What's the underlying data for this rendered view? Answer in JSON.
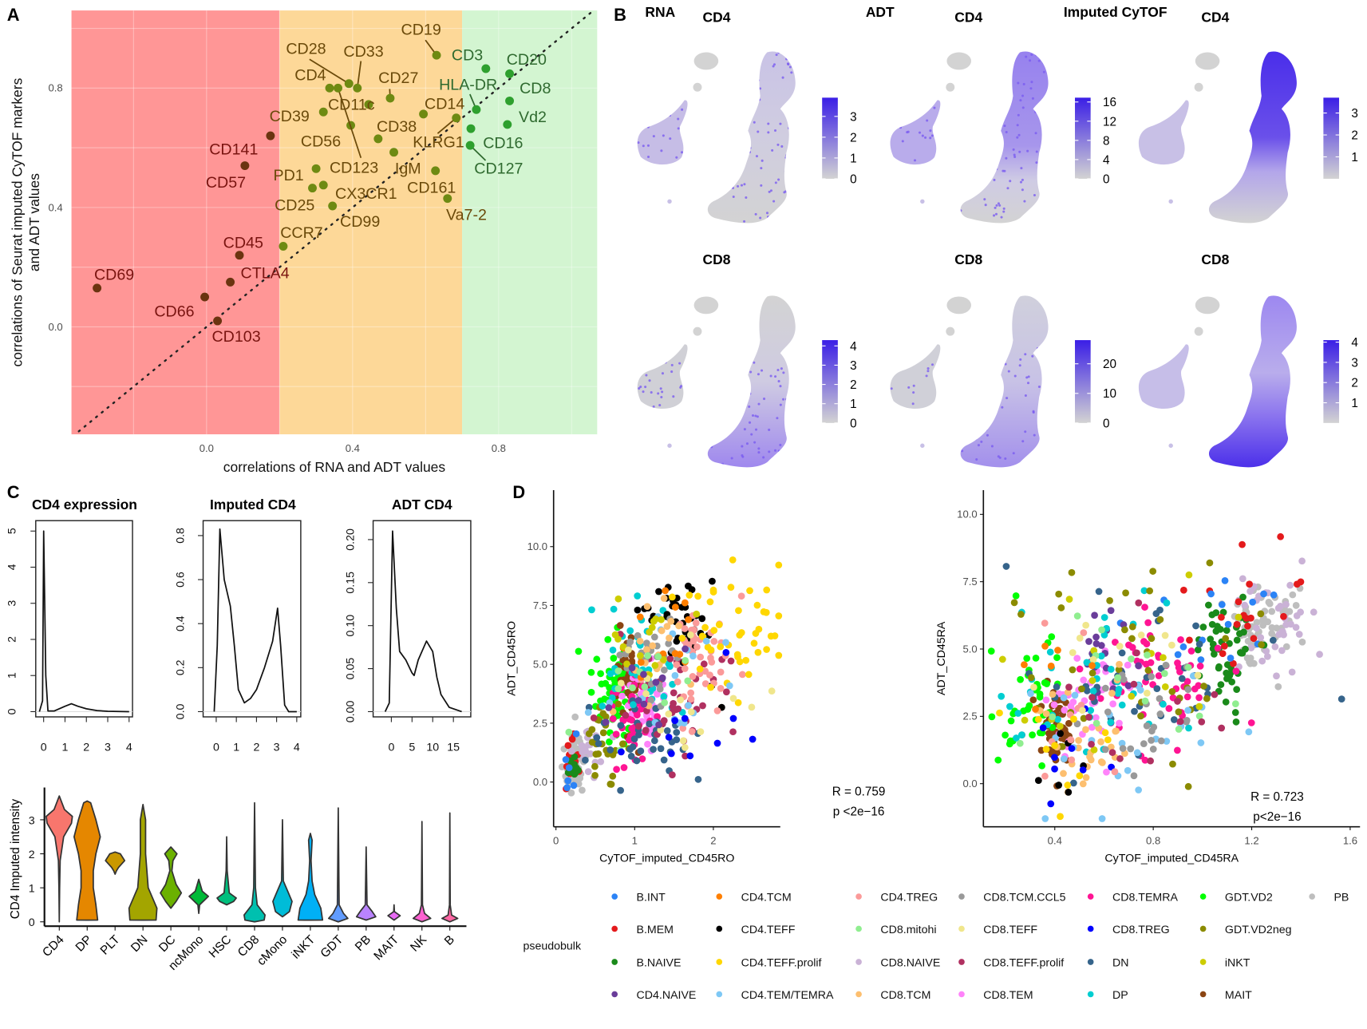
{
  "panel_letters": {
    "a": "A",
    "b": "B",
    "c": "C",
    "d": "D"
  },
  "chart_data": [
    {
      "type": "scatter",
      "xlabel": "correlations of RNA and ADT values",
      "ylabel_line1": "correlations of Seurat imputed CyTOF markers",
      "ylabel_line2": "and ADT values",
      "xlim": [
        -0.37,
        1.07
      ],
      "ylim": [
        -0.36,
        1.06
      ],
      "xticks": [
        "0.0",
        "0.4",
        "0.8"
      ],
      "yticks": [
        "0.0",
        "0.4",
        "0.8"
      ],
      "grid": true,
      "reference_line": "y = x (dotted)",
      "regions": [
        {
          "xmax": 0.2,
          "color": "#ff9696"
        },
        {
          "xmin": 0.2,
          "xmax": 0.7,
          "color": "#fdd898"
        },
        {
          "xmin": 0.7,
          "color": "#d3f5d1"
        }
      ],
      "points": [
        {
          "label": "CD69",
          "x": -0.3,
          "y": 0.13
        },
        {
          "label": "CD66",
          "x": -0.005,
          "y": 0.1
        },
        {
          "label": "CD103",
          "x": 0.03,
          "y": 0.02
        },
        {
          "label": "CTLA4",
          "x": 0.065,
          "y": 0.15
        },
        {
          "label": "CD45",
          "x": 0.09,
          "y": 0.24
        },
        {
          "label": "CD57",
          "x": 0.105,
          "y": 0.54
        },
        {
          "label": "CD141",
          "x": 0.175,
          "y": 0.64
        },
        {
          "label": "CCR7",
          "x": 0.21,
          "y": 0.27
        },
        {
          "label": "CD25",
          "x": 0.29,
          "y": 0.465
        },
        {
          "label": "PD1",
          "x": 0.3,
          "y": 0.53
        },
        {
          "label": "CX3CR1",
          "x": 0.32,
          "y": 0.475
        },
        {
          "label": "CD99",
          "x": 0.345,
          "y": 0.405
        },
        {
          "label": "CD39",
          "x": 0.32,
          "y": 0.72
        },
        {
          "label": "CD4",
          "x": 0.337,
          "y": 0.8
        },
        {
          "label": "CD28",
          "x": 0.39,
          "y": 0.815
        },
        {
          "label": "CD33",
          "x": 0.413,
          "y": 0.8
        },
        {
          "label": "CD11c",
          "x": 0.444,
          "y": 0.745
        },
        {
          "label": "CD56",
          "x": 0.395,
          "y": 0.675
        },
        {
          "label": "CD27",
          "x": 0.503,
          "y": 0.766
        },
        {
          "label": "CD38",
          "x": 0.47,
          "y": 0.63
        },
        {
          "label": "IgM",
          "x": 0.513,
          "y": 0.585
        },
        {
          "label": "CD14",
          "x": 0.594,
          "y": 0.713
        },
        {
          "label": "CD161",
          "x": 0.627,
          "y": 0.523
        },
        {
          "label": "Va7-2",
          "x": 0.66,
          "y": 0.43
        },
        {
          "label": "CD19",
          "x": 0.63,
          "y": 0.91
        },
        {
          "label": "KLRG1",
          "x": 0.684,
          "y": 0.7
        },
        {
          "label": "CD123",
          "x": 0.36,
          "y": 0.8
        },
        {
          "label": "HLA-DR",
          "x": 0.739,
          "y": 0.728
        },
        {
          "label": "CD3",
          "x": 0.765,
          "y": 0.865
        },
        {
          "label": "CD20",
          "x": 0.83,
          "y": 0.848
        },
        {
          "label": "CD8",
          "x": 0.83,
          "y": 0.757
        },
        {
          "label": "Vd2",
          "x": 0.824,
          "y": 0.678
        },
        {
          "label": "CD16",
          "x": 0.724,
          "y": 0.664
        },
        {
          "label": "CD127",
          "x": 0.722,
          "y": 0.608
        }
      ]
    },
    {
      "type": "scatter",
      "description_free": "",
      "panels": [
        {
          "modality": "RNA",
          "feature": "CD4",
          "range": [
            0,
            3.9
          ],
          "ticks": [
            "0",
            "1",
            "2",
            "3"
          ]
        },
        {
          "modality": "ADT",
          "feature": "CD4",
          "range": [
            0,
            16.9
          ],
          "ticks": [
            "0",
            "4",
            "8",
            "12",
            "16"
          ]
        },
        {
          "modality": "Imputed CyTOF",
          "feature": "CD4",
          "range": [
            0,
            3.7
          ],
          "ticks": [
            "1",
            "2",
            "3"
          ]
        },
        {
          "modality": "",
          "feature": "CD8",
          "range": [
            0,
            4.3
          ],
          "ticks": [
            "0",
            "1",
            "2",
            "3",
            "4"
          ]
        },
        {
          "modality": "",
          "feature": "CD8",
          "range": [
            0,
            28
          ],
          "ticks": [
            "0",
            "10",
            "20"
          ]
        },
        {
          "modality": "",
          "feature": "CD8",
          "range": [
            0,
            4.1
          ],
          "ticks": [
            "1",
            "2",
            "3",
            "4"
          ]
        }
      ],
      "low_color": "#d3d3d3",
      "high_color": "#3a1ee6"
    },
    {
      "type": "line",
      "title": "CD4 expression",
      "xlim": [
        -0.37,
        4.16
      ],
      "ylim": [
        0,
        5.24
      ],
      "xticks": [
        "0",
        "1",
        "2",
        "3",
        "4"
      ],
      "yticks": [
        "0",
        "1",
        "2",
        "3",
        "4",
        "5"
      ],
      "x": [
        -0.2,
        -0.05,
        0,
        0.1,
        0.2,
        0.5,
        1.0,
        1.3,
        1.6,
        2.0,
        2.5,
        3.0,
        4.0
      ],
      "y": [
        0,
        0.3,
        5.0,
        1.0,
        0.02,
        0.02,
        0.15,
        0.22,
        0.15,
        0.08,
        0.03,
        0.01,
        0
      ]
    },
    {
      "type": "line",
      "title": "Imputed CD4",
      "xlim": [
        -0.65,
        4.2
      ],
      "ylim": [
        0,
        0.86
      ],
      "xticks": [
        "0",
        "1",
        "2",
        "3",
        "4"
      ],
      "yticks": [
        "0.0",
        "0.2",
        "0.4",
        "0.6",
        "0.8"
      ],
      "x": [
        -0.1,
        0.05,
        0.18,
        0.4,
        0.7,
        0.9,
        1.1,
        1.4,
        1.7,
        2.0,
        2.4,
        2.8,
        3.05,
        3.2,
        3.4,
        3.6,
        4.0
      ],
      "y": [
        0,
        0.3,
        0.83,
        0.6,
        0.48,
        0.3,
        0.1,
        0.04,
        0.06,
        0.1,
        0.2,
        0.32,
        0.47,
        0.3,
        0.03,
        0,
        0
      ]
    },
    {
      "type": "line",
      "title": "ADT CD4",
      "xlim": [
        -4.4,
        19.2
      ],
      "ylim": [
        0,
        0.22
      ],
      "xticks": [
        "0",
        "5",
        "10",
        "15"
      ],
      "yticks": [
        "0.00",
        "0.05",
        "0.10",
        "0.15",
        "0.20"
      ],
      "x": [
        -1.5,
        -0.5,
        0.3,
        1.2,
        2,
        3.5,
        4,
        5,
        5.5,
        6.5,
        8.5,
        10,
        11,
        12,
        14,
        17
      ],
      "y": [
        0,
        0.01,
        0.21,
        0.12,
        0.07,
        0.06,
        0.055,
        0.045,
        0.042,
        0.06,
        0.082,
        0.07,
        0.04,
        0.02,
        0.005,
        0
      ]
    },
    {
      "type": "violin",
      "ylabel": "CD4 Imputed intensity",
      "yticks": [
        "0",
        "1",
        "2",
        "3"
      ],
      "categories": [
        "CD4",
        "DP",
        "PLT",
        "DN",
        "DC",
        "ncMono",
        "HSC",
        "CD8",
        "cMono",
        "iNKT",
        "GDT",
        "PB",
        "MAIT",
        "NK",
        "B"
      ],
      "colors": [
        "#F8766D",
        "#E58700",
        "#C99800",
        "#A3A500",
        "#6BB100",
        "#00BA38",
        "#00BF7D",
        "#00C0AF",
        "#00BCD8",
        "#00B0F6",
        "#619CFF",
        "#B983FF",
        "#E76BF3",
        "#FD61D1",
        "#FF67A4"
      ],
      "profiles": [
        [
          [
            0,
            0
          ],
          [
            1,
            0.02
          ],
          [
            1.8,
            0.05
          ],
          [
            2.5,
            0.25
          ],
          [
            2.9,
            0.7
          ],
          [
            3.1,
            0.75
          ],
          [
            3.3,
            0.3
          ],
          [
            3.7,
            0
          ]
        ],
        [
          [
            0.05,
            0.6
          ],
          [
            0.5,
            0.5
          ],
          [
            1,
            0.35
          ],
          [
            1.5,
            0.35
          ],
          [
            2,
            0.5
          ],
          [
            2.5,
            0.75
          ],
          [
            3,
            0.5
          ],
          [
            3.5,
            0.2
          ],
          [
            3.55,
            0
          ]
        ],
        [
          [
            1.4,
            0
          ],
          [
            1.5,
            0.08
          ],
          [
            1.6,
            0.2
          ],
          [
            1.8,
            0.55
          ],
          [
            2.0,
            0.3
          ],
          [
            2.05,
            0
          ]
        ],
        [
          [
            0.05,
            0.75
          ],
          [
            0.4,
            0.8
          ],
          [
            1.0,
            0.3
          ],
          [
            2,
            0.15
          ],
          [
            3,
            0.15
          ],
          [
            3.45,
            0
          ]
        ],
        [
          [
            0.4,
            0
          ],
          [
            0.6,
            0.3
          ],
          [
            0.85,
            0.6
          ],
          [
            1.1,
            0.3
          ],
          [
            1.5,
            0.06
          ],
          [
            1.8,
            0.12
          ],
          [
            2.0,
            0.35
          ],
          [
            2.2,
            0
          ]
        ],
        [
          [
            0.25,
            0
          ],
          [
            0.5,
            0.05
          ],
          [
            0.75,
            0.55
          ],
          [
            0.9,
            0.2
          ],
          [
            1.25,
            0
          ]
        ],
        [
          [
            0.5,
            0
          ],
          [
            0.6,
            0.4
          ],
          [
            0.7,
            0.55
          ],
          [
            0.85,
            0.15
          ],
          [
            1.5,
            0.03
          ],
          [
            2.5,
            0
          ]
        ],
        [
          [
            0,
            0
          ],
          [
            0.05,
            0.55
          ],
          [
            0.2,
            0.6
          ],
          [
            0.5,
            0.15
          ],
          [
            1.0,
            0.05
          ],
          [
            2,
            0.03
          ],
          [
            3.5,
            0
          ]
        ],
        [
          [
            0.15,
            0
          ],
          [
            0.3,
            0.4
          ],
          [
            0.6,
            0.55
          ],
          [
            0.9,
            0.3
          ],
          [
            1.2,
            0.05
          ],
          [
            3,
            0
          ]
        ],
        [
          [
            0.05,
            0.7
          ],
          [
            0.4,
            0.6
          ],
          [
            0.8,
            0.25
          ],
          [
            1.2,
            0.1
          ],
          [
            1.8,
            0.04
          ],
          [
            2.4,
            0.1
          ],
          [
            2.6,
            0
          ]
        ],
        [
          [
            0,
            0
          ],
          [
            0.1,
            0.55
          ],
          [
            0.25,
            0.3
          ],
          [
            0.5,
            0.05
          ],
          [
            3.35,
            0
          ]
        ],
        [
          [
            0.05,
            0
          ],
          [
            0.15,
            0.55
          ],
          [
            0.3,
            0.35
          ],
          [
            0.5,
            0.05
          ],
          [
            2.2,
            0
          ]
        ],
        [
          [
            0.05,
            0
          ],
          [
            0.18,
            0.35
          ],
          [
            0.3,
            0.02
          ],
          [
            0.5,
            0
          ]
        ],
        [
          [
            0,
            0
          ],
          [
            0.1,
            0.5
          ],
          [
            0.25,
            0.15
          ],
          [
            0.5,
            0.03
          ],
          [
            2.95,
            0
          ]
        ],
        [
          [
            0,
            0
          ],
          [
            0.1,
            0.45
          ],
          [
            0.2,
            0.1
          ],
          [
            0.5,
            0.02
          ],
          [
            3.2,
            0
          ]
        ]
      ]
    },
    {
      "type": "scatter",
      "xlabel": "CyTOF_imputed_CD45RO",
      "ylabel": "ADT_CD45RO",
      "xticks": [
        "0",
        "1",
        "2"
      ],
      "yticks": [
        "0.0",
        "2.5",
        "5.0",
        "7.5",
        "10.0"
      ],
      "xlim": [
        -0.03,
        2.85
      ],
      "ylim": [
        -1.9,
        12.4
      ],
      "r_label": "R = 0.759",
      "p_label": "p <2e−16"
    },
    {
      "type": "scatter",
      "xlabel": "CyTOF_imputed_CD45RA",
      "ylabel": "ADT_CD45RA",
      "xticks": [
        "0.4",
        "0.8",
        "1.2",
        "1.6"
      ],
      "yticks": [
        "0.0",
        "2.5",
        "5.0",
        "7.5",
        "10.0"
      ],
      "xlim": [
        0.11,
        1.64
      ],
      "ylim": [
        -1.6,
        10.9
      ],
      "r_label": "R = 0.723",
      "p_label": "p<2e−16"
    }
  ],
  "legend": {
    "title": "pseudobulk",
    "items": [
      {
        "label": "B.INT",
        "color": "#2B83F6"
      },
      {
        "label": "B.MEM",
        "color": "#E41A1C"
      },
      {
        "label": "B.NAIVE",
        "color": "#1A8A1A"
      },
      {
        "label": "CD4.NAIVE",
        "color": "#6A3D9A"
      },
      {
        "label": "CD4.TCM",
        "color": "#FF7F00"
      },
      {
        "label": "CD4.TEFF",
        "color": "#000000"
      },
      {
        "label": "CD4.TEFF.prolif",
        "color": "#FFD700"
      },
      {
        "label": "CD4.TEM/TEMRA",
        "color": "#7EC8F5"
      },
      {
        "label": "CD4.TREG",
        "color": "#FB9A99"
      },
      {
        "label": "CD8.mitohi",
        "color": "#90EE90"
      },
      {
        "label": "CD8.NAIVE",
        "color": "#CAB2D6"
      },
      {
        "label": "CD8.TCM",
        "color": "#FDBF6F"
      },
      {
        "label": "CD8.TCM.CCL5",
        "color": "#999999"
      },
      {
        "label": "CD8.TEFF",
        "color": "#F0E68C"
      },
      {
        "label": "CD8.TEFF.prolif",
        "color": "#B03060"
      },
      {
        "label": "CD8.TEM",
        "color": "#FF83FA"
      },
      {
        "label": "CD8.TEMRA",
        "color": "#FF1493"
      },
      {
        "label": "CD8.TREG",
        "color": "#0000FF"
      },
      {
        "label": "DN",
        "color": "#36648B"
      },
      {
        "label": "DP",
        "color": "#00CED1"
      },
      {
        "label": "GDT.VD2",
        "color": "#00FF00"
      },
      {
        "label": "GDT.VD2neg",
        "color": "#8B8B00"
      },
      {
        "label": "iNKT",
        "color": "#CDCD00"
      },
      {
        "label": "MAIT",
        "color": "#8B4513"
      },
      {
        "label": "PB",
        "color": "#BEBEBE"
      }
    ]
  }
}
